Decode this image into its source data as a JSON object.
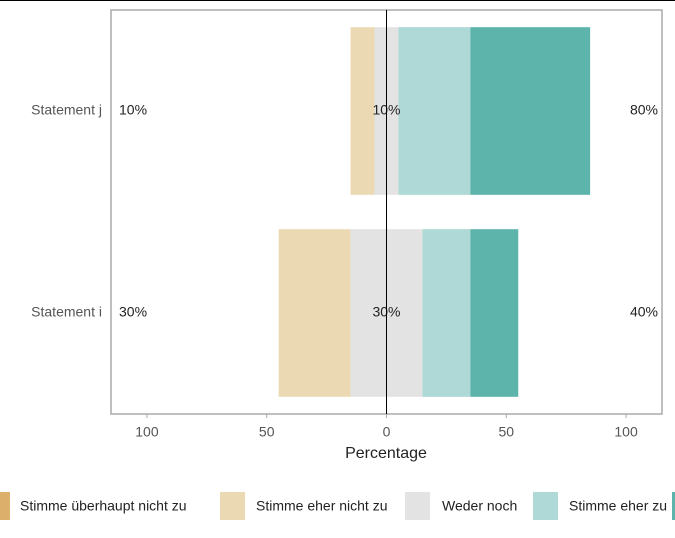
{
  "chart_data": {
    "type": "diverging-bar",
    "categories": [
      "Statement j",
      "Statement i"
    ],
    "neutral_series": 2,
    "negative_series": [
      0,
      1
    ],
    "series": [
      {
        "name": "Stimme überhaupt nicht zu",
        "color": "#dcb06a",
        "values": [
          0,
          0
        ]
      },
      {
        "name": "Stimme eher nicht zu",
        "color": "#ead9b3",
        "values": [
          10,
          30
        ]
      },
      {
        "name": "Weder noch",
        "color": "#e3e3e3",
        "values": [
          10,
          30
        ]
      },
      {
        "name": "Stimme eher zu",
        "color": "#afd9d6",
        "values": [
          30,
          20
        ]
      },
      {
        "name": null,
        "color": "#5cb4ab",
        "values": [
          50,
          20
        ]
      }
    ],
    "left_percent": {
      "values": [
        10,
        30
      ],
      "value_labels": [
        "10%",
        "30%"
      ]
    },
    "neutral_percent": {
      "values": [
        10,
        30
      ],
      "value_labels": [
        "10%",
        "30%"
      ]
    },
    "right_percent": {
      "values": [
        80,
        40
      ],
      "value_labels": [
        "80%",
        "40%"
      ]
    },
    "xlabel": "Percentage",
    "xlim": [
      -115,
      115
    ],
    "xticks": [
      {
        "value": -100,
        "label": "100"
      },
      {
        "value": -50,
        "label": "50"
      },
      0,
      50,
      {
        "value": 100,
        "label": "100"
      }
    ]
  }
}
